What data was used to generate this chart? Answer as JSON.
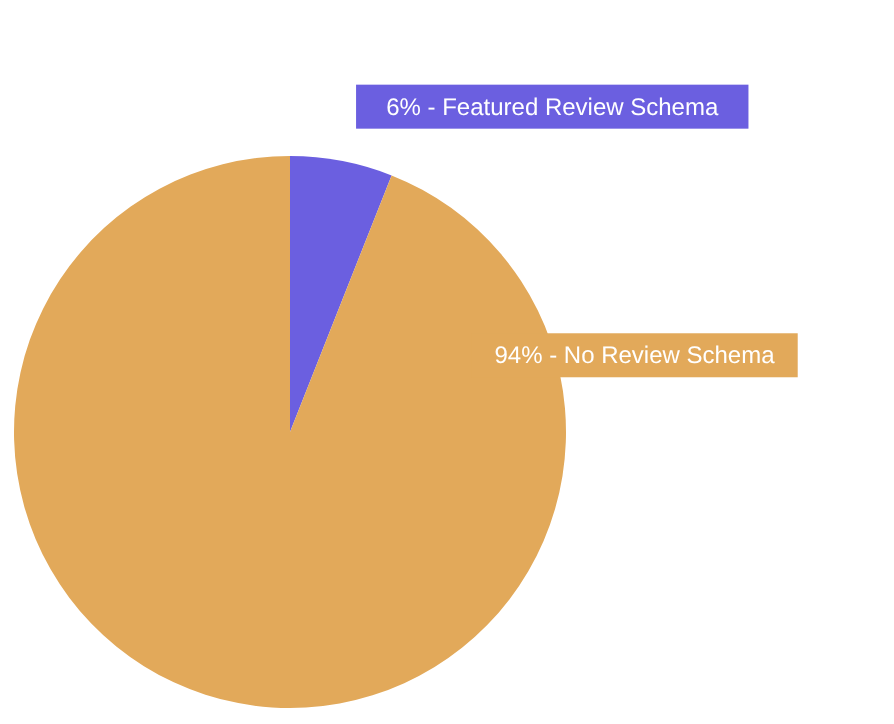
{
  "chart_data": {
    "type": "pie",
    "categories": [
      "Featured Review Schema",
      "No Review Schema"
    ],
    "values": [
      6,
      94
    ],
    "value_labels": [
      "6%",
      "94%"
    ],
    "colors": [
      "#6b5fe0",
      "#e2a95a"
    ],
    "legend": false
  }
}
